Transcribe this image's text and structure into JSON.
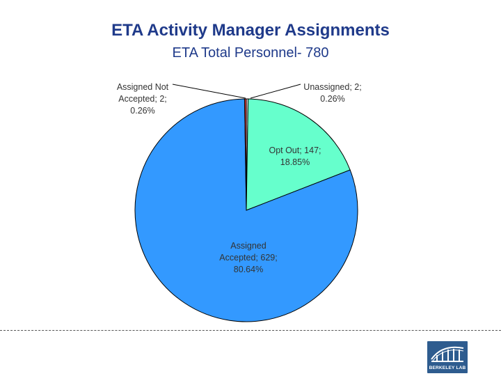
{
  "header": {
    "title": "ETA Activity Manager Assignments",
    "subtitle": "ETA Total Personnel- 780"
  },
  "chart_data": {
    "type": "pie",
    "title": "ETA Activity Manager Assignments",
    "subtitle": "ETA Total Personnel- 780",
    "slices": [
      {
        "name": "Unassigned",
        "value": 2,
        "percent": "0.26%",
        "label_lines": [
          "Unassigned; 2;",
          "0.26%"
        ],
        "color": "#e8e8e8"
      },
      {
        "name": "Opt Out",
        "value": 147,
        "percent": "18.85%",
        "label_lines": [
          "Opt Out; 147;",
          "18.85%"
        ],
        "color": "#66ffcc"
      },
      {
        "name": "Assigned Accepted",
        "value": 629,
        "percent": "80.64%",
        "label_lines": [
          "Assigned",
          "Accepted; 629;",
          "80.64%"
        ],
        "color": "#3399ff"
      },
      {
        "name": "Assigned Not Accepted",
        "value": 2,
        "percent": "0.26%",
        "label_lines": [
          "Assigned Not",
          "Accepted; 2;",
          "0.26%"
        ],
        "color": "#cc3333"
      }
    ],
    "legend": "none"
  },
  "footer": {
    "logo_text": "BERKELEY LAB"
  }
}
